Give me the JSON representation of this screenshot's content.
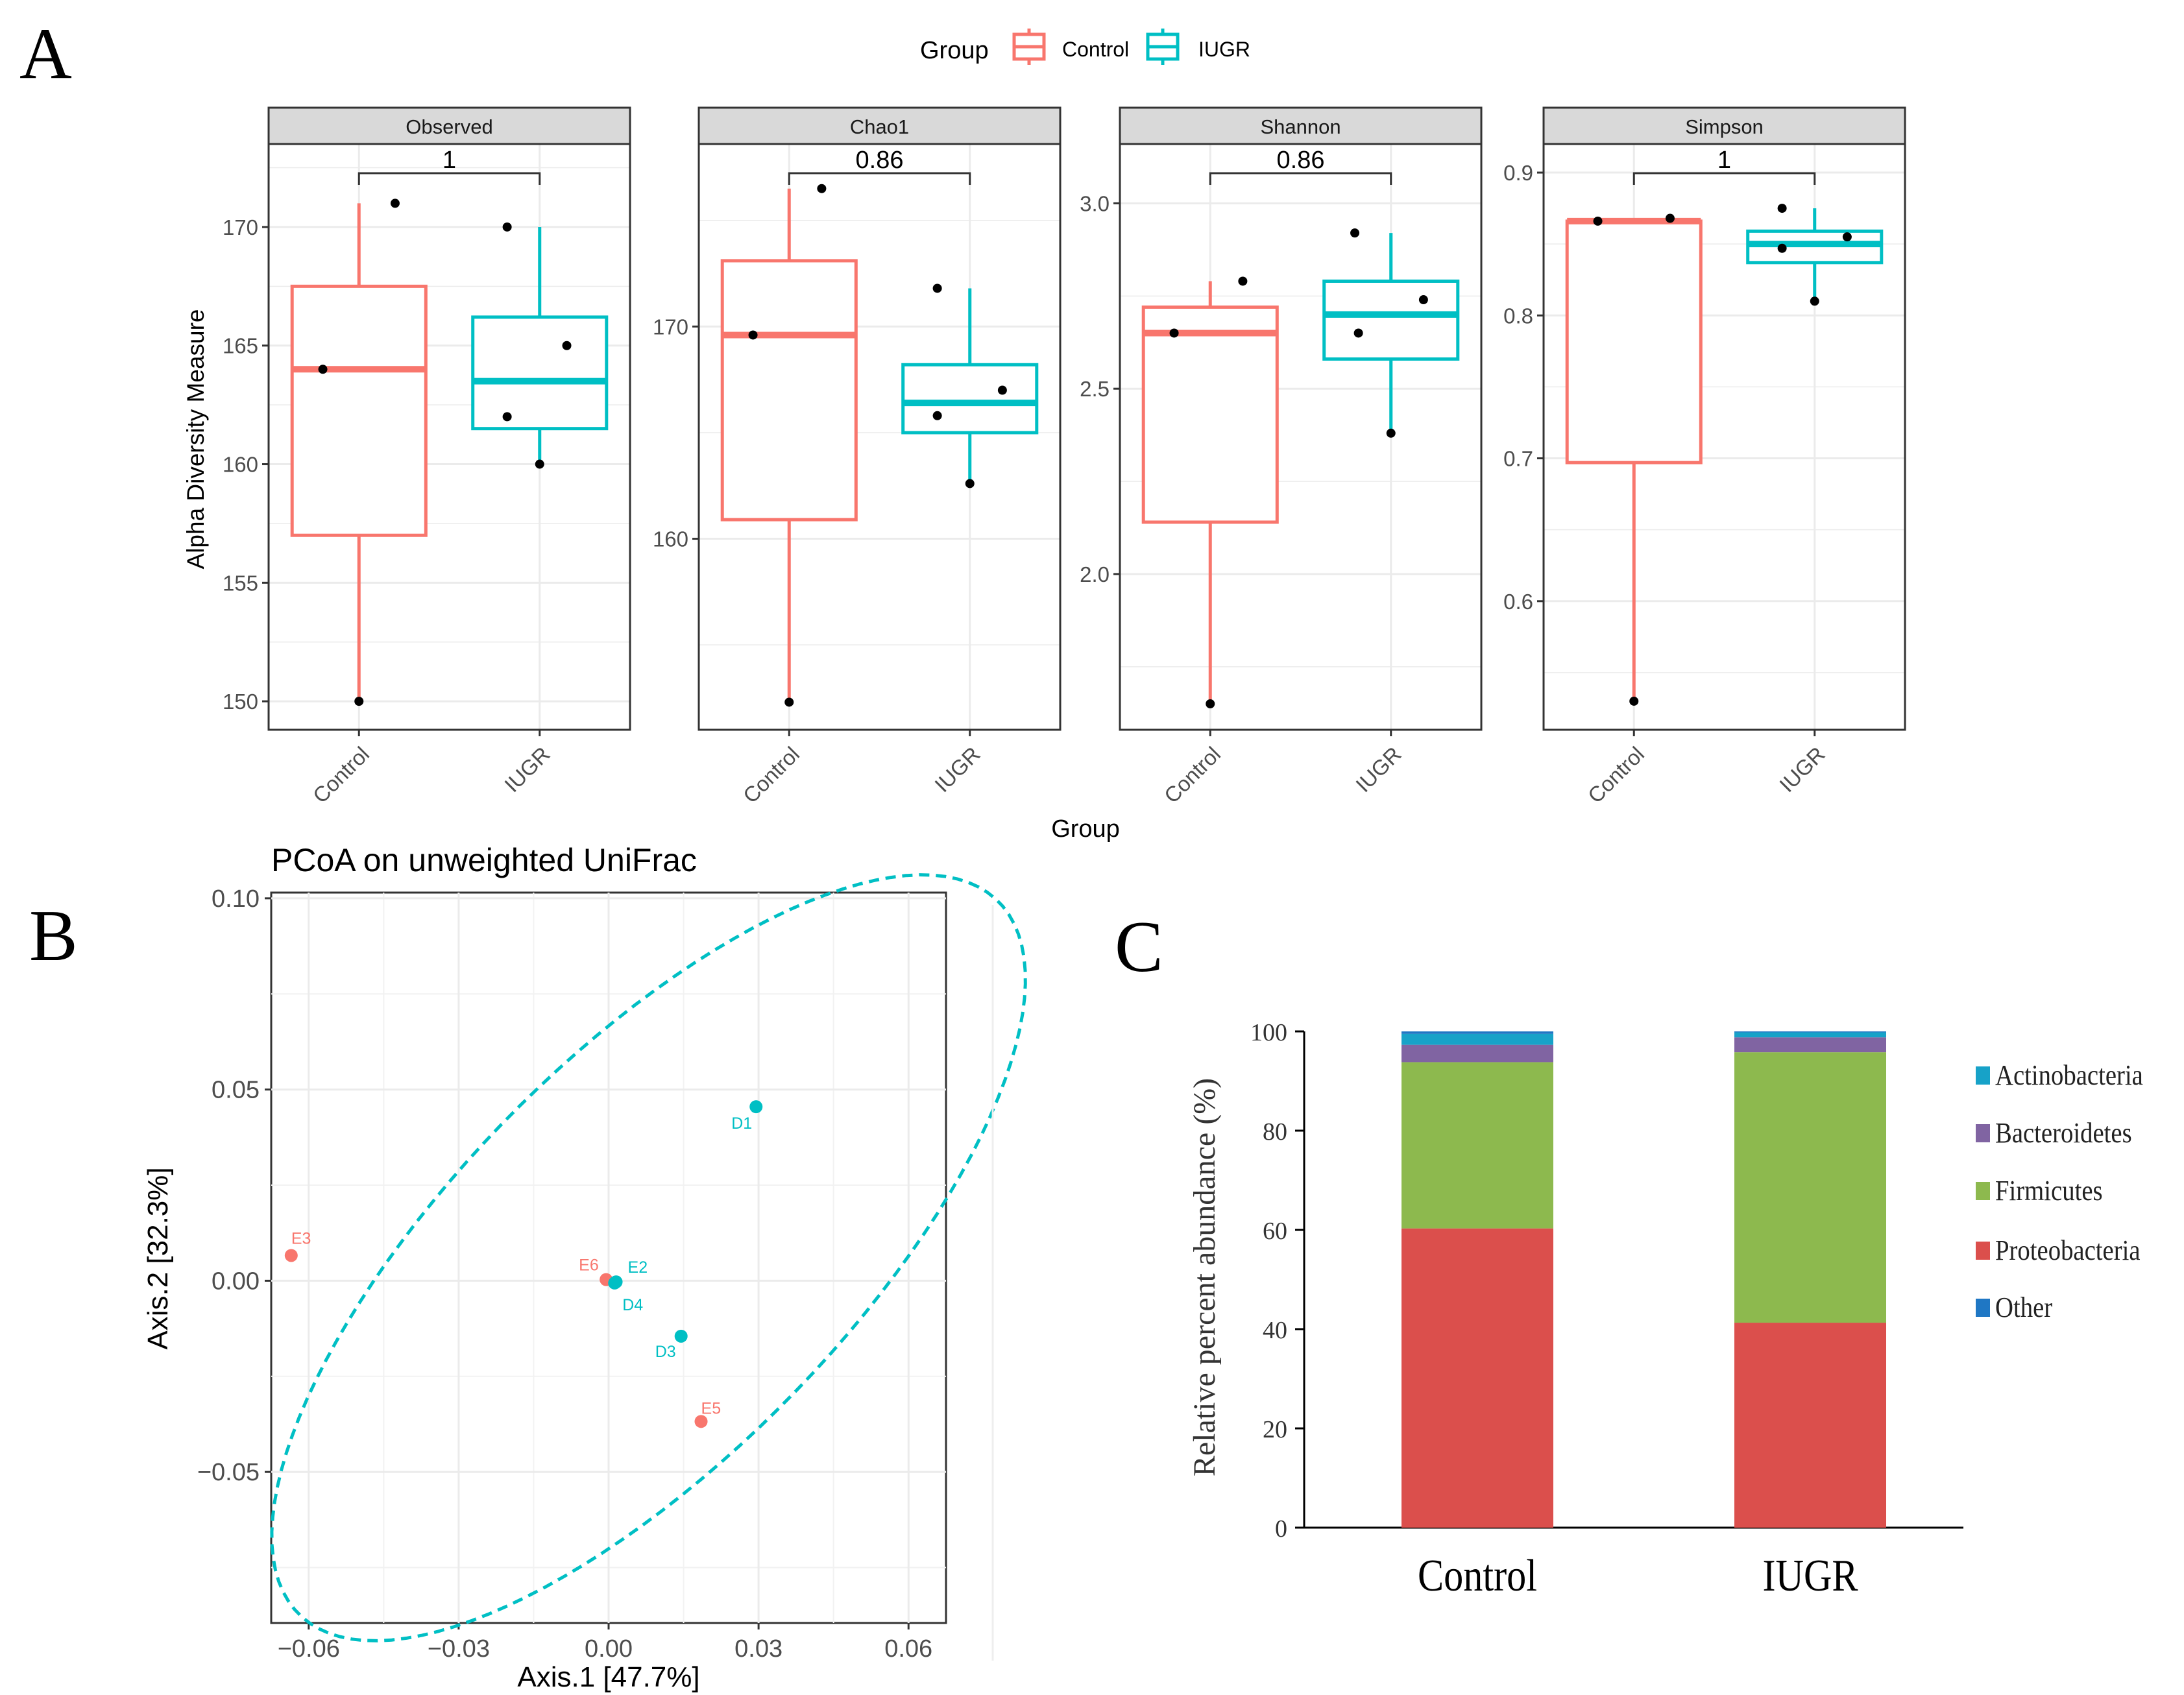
{
  "panels": {
    "a": {
      "label": "A"
    },
    "b": {
      "label": "B"
    },
    "c": {
      "label": "C"
    }
  },
  "colors": {
    "control": "#F8766D",
    "iugr": "#00BFC4",
    "strip_bg": "#D9D9D9",
    "grid": "#EBEBEB",
    "actinobacteria": "#17A2C8",
    "bacteroidetes": "#8064A2",
    "firmicutes": "#8DB94E",
    "proteobacteria": "#DB4F4C",
    "other": "#1F77C4"
  },
  "chart_data": [
    {
      "id": "alpha_diversity",
      "type": "boxplot",
      "legend_title": "Group",
      "legend": [
        "Control",
        "IUGR"
      ],
      "ylabel": "Alpha Diversity Measure",
      "xlabel": "Group",
      "categories": [
        "Control",
        "IUGR"
      ],
      "facets": [
        {
          "name": "Observed",
          "p_value": "1",
          "ylim": [
            148.8,
            173.5
          ],
          "yticks": [
            150,
            155,
            160,
            165,
            170
          ],
          "ytick_labels": [
            "150",
            "155",
            "160",
            "165",
            "170"
          ],
          "boxes": [
            {
              "group": "Control",
              "whisker_low": 150,
              "q1": 157,
              "median": 164,
              "q3": 167.5,
              "whisker_high": 171
            },
            {
              "group": "IUGR",
              "whisker_low": 160,
              "q1": 161.5,
              "median": 163.5,
              "q3": 166.2,
              "whisker_high": 170
            }
          ],
          "points": [
            {
              "group": "Control",
              "offset": -0.2,
              "value": 164
            },
            {
              "group": "Control",
              "offset": 0.2,
              "value": 171
            },
            {
              "group": "Control",
              "offset": 0.0,
              "value": 150
            },
            {
              "group": "IUGR",
              "offset": -0.18,
              "value": 170
            },
            {
              "group": "IUGR",
              "offset": 0.15,
              "value": 165
            },
            {
              "group": "IUGR",
              "offset": -0.18,
              "value": 162
            },
            {
              "group": "IUGR",
              "offset": 0.0,
              "value": 160
            }
          ]
        },
        {
          "name": "Chao1",
          "p_value": "0.86",
          "ylim": [
            151.0,
            178.6
          ],
          "yticks": [
            160,
            170
          ],
          "ytick_labels": [
            "160",
            "170"
          ],
          "boxes": [
            {
              "group": "Control",
              "whisker_low": 152.3,
              "q1": 160.9,
              "median": 169.6,
              "q3": 173.1,
              "whisker_high": 176.5
            },
            {
              "group": "IUGR",
              "whisker_low": 162.6,
              "q1": 165,
              "median": 166.4,
              "q3": 168.2,
              "whisker_high": 171.8
            }
          ],
          "points": [
            {
              "group": "Control",
              "offset": -0.2,
              "value": 169.6
            },
            {
              "group": "Control",
              "offset": 0.18,
              "value": 176.5
            },
            {
              "group": "Control",
              "offset": 0.0,
              "value": 152.3
            },
            {
              "group": "IUGR",
              "offset": -0.18,
              "value": 171.8
            },
            {
              "group": "IUGR",
              "offset": 0.18,
              "value": 167
            },
            {
              "group": "IUGR",
              "offset": -0.18,
              "value": 165.8
            },
            {
              "group": "IUGR",
              "offset": 0.0,
              "value": 162.6
            }
          ]
        },
        {
          "name": "Shannon",
          "p_value": "0.86",
          "ylim": [
            1.58,
            3.16
          ],
          "yticks": [
            2.0,
            2.5,
            3.0
          ],
          "ytick_labels": [
            "2.0",
            "2.5",
            "3.0"
          ],
          "boxes": [
            {
              "group": "Control",
              "whisker_low": 1.65,
              "q1": 2.14,
              "median": 2.65,
              "q3": 2.72,
              "whisker_high": 2.79
            },
            {
              "group": "IUGR",
              "whisker_low": 2.38,
              "q1": 2.58,
              "median": 2.7,
              "q3": 2.79,
              "whisker_high": 2.92
            }
          ],
          "points": [
            {
              "group": "Control",
              "offset": -0.2,
              "value": 2.65
            },
            {
              "group": "Control",
              "offset": 0.18,
              "value": 2.79
            },
            {
              "group": "Control",
              "offset": 0.0,
              "value": 1.65
            },
            {
              "group": "IUGR",
              "offset": -0.2,
              "value": 2.92
            },
            {
              "group": "IUGR",
              "offset": 0.18,
              "value": 2.74
            },
            {
              "group": "IUGR",
              "offset": -0.18,
              "value": 2.65
            },
            {
              "group": "IUGR",
              "offset": 0.0,
              "value": 2.38
            }
          ]
        },
        {
          "name": "Simpson",
          "p_value": "1",
          "ylim": [
            0.51,
            0.92
          ],
          "yticks": [
            0.6,
            0.7,
            0.8,
            0.9
          ],
          "ytick_labels": [
            "0.6",
            "0.7",
            "0.8",
            "0.9"
          ],
          "boxes": [
            {
              "group": "Control",
              "whisker_low": 0.53,
              "q1": 0.697,
              "median": 0.866,
              "q3": 0.866,
              "whisker_high": 0.868
            },
            {
              "group": "IUGR",
              "whisker_low": 0.81,
              "q1": 0.837,
              "median": 0.85,
              "q3": 0.859,
              "whisker_high": 0.875
            }
          ],
          "points": [
            {
              "group": "Control",
              "offset": -0.2,
              "value": 0.866
            },
            {
              "group": "Control",
              "offset": 0.2,
              "value": 0.868
            },
            {
              "group": "Control",
              "offset": 0.0,
              "value": 0.53
            },
            {
              "group": "IUGR",
              "offset": -0.18,
              "value": 0.875
            },
            {
              "group": "IUGR",
              "offset": 0.18,
              "value": 0.855
            },
            {
              "group": "IUGR",
              "offset": -0.18,
              "value": 0.847
            },
            {
              "group": "IUGR",
              "offset": 0.0,
              "value": 0.81
            }
          ]
        }
      ]
    },
    {
      "id": "pcoa",
      "type": "scatter",
      "title": "PCoA on unweighted UniFrac",
      "xlabel": "Axis.1   [47.7%]",
      "ylabel": "Axis.2   [32.3%]",
      "xlim": [
        -0.0675,
        0.0675
      ],
      "ylim": [
        -0.0895,
        0.1015
      ],
      "xticks": [
        -0.06,
        -0.03,
        0.0,
        0.03,
        0.06
      ],
      "xtick_labels": [
        "−0.06",
        "−0.03",
        "0.00",
        "0.03",
        "0.06"
      ],
      "yticks": [
        -0.05,
        0.0,
        0.05,
        0.1
      ],
      "ytick_labels": [
        "−0.05",
        "0.00",
        "0.05",
        "0.10"
      ],
      "ellipse": {
        "group": "IUGR",
        "center": [
          0.008,
          0.006
        ],
        "angle_deg": 55.8,
        "rx": 0.1173,
        "ry": 0.0442
      },
      "points": [
        {
          "label": "E3",
          "group": "Control",
          "x": -0.0635,
          "y": 0.0066
        },
        {
          "label": "E6",
          "group": "Control",
          "x": -0.0005,
          "y": 0.0003
        },
        {
          "label": "E5",
          "group": "Control",
          "x": 0.0185,
          "y": -0.0368
        },
        {
          "label": "E2",
          "group": "IUGR",
          "x": 0.0015,
          "y": -0.0003
        },
        {
          "label": "D4",
          "group": "IUGR",
          "x": 0.0012,
          "y": -0.0006
        },
        {
          "label": "D3",
          "group": "IUGR",
          "x": 0.0145,
          "y": -0.0145
        },
        {
          "label": "D1",
          "group": "IUGR",
          "x": 0.0295,
          "y": 0.0455
        }
      ]
    },
    {
      "id": "relative_abundance",
      "type": "bar",
      "stacked": true,
      "ylabel": "Relative percent abundance (%)",
      "ylim": [
        0,
        100
      ],
      "yticks": [
        0,
        20,
        40,
        60,
        80,
        100
      ],
      "ytick_labels": [
        "0",
        "20",
        "40",
        "60",
        "80",
        "100"
      ],
      "categories": [
        "Control",
        "IUGR"
      ],
      "series": [
        {
          "name": "Proteobacteria",
          "values": [
            60.3,
            41.3
          ]
        },
        {
          "name": "Firmicutes",
          "values": [
            33.5,
            54.5
          ]
        },
        {
          "name": "Bacteroidetes",
          "values": [
            3.5,
            3.0
          ]
        },
        {
          "name": "Actinobacteria",
          "values": [
            2.2,
            1.0
          ]
        },
        {
          "name": "Other",
          "values": [
            0.5,
            0.2
          ]
        }
      ],
      "legend": [
        "Actinobacteria",
        "Bacteroidetes",
        "Firmicutes",
        "Proteobacteria",
        "Other"
      ]
    }
  ]
}
